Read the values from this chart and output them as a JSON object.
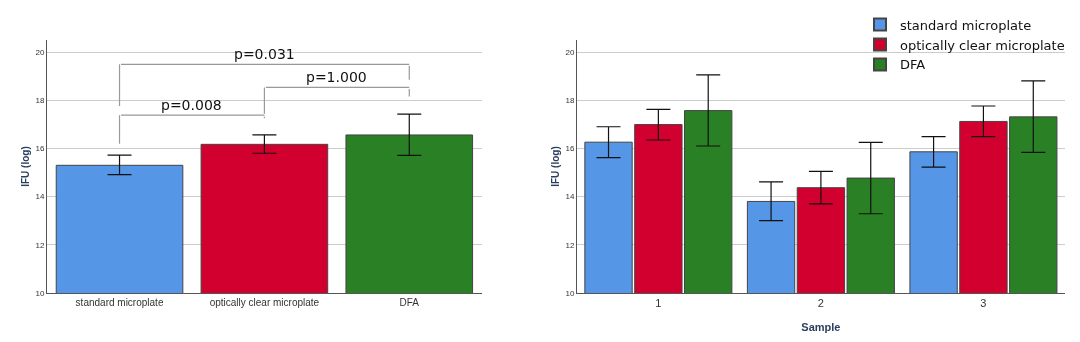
{
  "chart_data": [
    {
      "type": "bar",
      "ylabel": "IFU (log)",
      "categories": [
        "standard microplate",
        "optically clear microplate",
        "DFA"
      ],
      "values": [
        15.3,
        16.17,
        16.56
      ],
      "colors": [
        "#5596e6",
        "#d2002f",
        "#2a8025"
      ],
      "errors": [
        [
          14.91,
          15.72
        ],
        [
          15.8,
          16.56
        ],
        [
          15.71,
          17.42
        ]
      ],
      "ylim": [
        10,
        20.5
      ],
      "yticks": [
        10,
        12,
        14,
        16,
        18,
        20
      ],
      "grid": "y",
      "annotations": [
        "p=0.008",
        "p=1.000",
        "p=0.031"
      ]
    },
    {
      "type": "bar",
      "xlabel": "Sample",
      "ylabel": "IFU (log)",
      "categories": [
        "1",
        "2",
        "3"
      ],
      "series": [
        {
          "name": "standard microplate",
          "color": "#5596e6",
          "values": [
            16.26,
            13.8,
            15.86
          ],
          "errors": [
            [
              15.62,
              16.9
            ],
            [
              13.0,
              14.61
            ],
            [
              15.22,
              16.49
            ]
          ]
        },
        {
          "name": "optically clear microplate",
          "color": "#d2002f",
          "values": [
            16.99,
            14.37,
            17.12
          ],
          "errors": [
            [
              16.35,
              17.62
            ],
            [
              13.7,
              15.05
            ],
            [
              16.49,
              17.76
            ]
          ]
        },
        {
          "name": "DFA",
          "color": "#2a8025",
          "values": [
            17.57,
            14.77,
            17.31
          ],
          "errors": [
            [
              16.1,
              19.05
            ],
            [
              13.29,
              16.25
            ],
            [
              15.84,
              18.8
            ]
          ]
        }
      ],
      "ylim": [
        10,
        20.5
      ],
      "yticks": [
        10,
        12,
        14,
        16,
        18,
        20
      ],
      "grid": "y",
      "legend": "top right"
    }
  ]
}
